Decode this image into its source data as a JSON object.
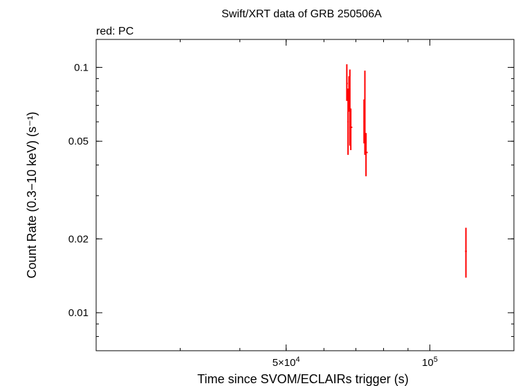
{
  "chart_data": {
    "type": "scatter",
    "title": "Swift/XRT data of GRB 250506A",
    "subtitle": "red: PC",
    "xlabel": "Time since SVOM/ECLAIRs trigger (s)",
    "ylabel": "Count Rate (0.3−10 keV) (s⁻¹)",
    "x_scale": "log",
    "y_scale": "log",
    "xlim": [
      20000,
      150000
    ],
    "ylim": [
      0.007,
      0.13
    ],
    "x_tick_labels": [
      {
        "value": 50000,
        "mantissa": "5×10",
        "exponent": "4"
      },
      {
        "value": 100000,
        "mantissa": "10",
        "exponent": "5"
      }
    ],
    "y_tick_labels": [
      {
        "value": 0.1,
        "label": "0.1"
      },
      {
        "value": 0.05,
        "label": "0.05"
      },
      {
        "value": 0.02,
        "label": "0.02"
      },
      {
        "value": 0.01,
        "label": "0.01"
      }
    ],
    "series": [
      {
        "color": "#ff0000",
        "points": [
          {
            "x": 67000,
            "y": 0.086,
            "ylo": 0.073,
            "yhi": 0.103,
            "xlo": 66800,
            "xhi": 67300
          },
          {
            "x": 67400,
            "y": 0.06,
            "ylo": 0.044,
            "yhi": 0.082,
            "xlo": 67200,
            "xhi": 67600
          },
          {
            "x": 67700,
            "y": 0.078,
            "ylo": 0.066,
            "yhi": 0.092,
            "xlo": 67500,
            "xhi": 67900
          },
          {
            "x": 68000,
            "y": 0.054,
            "ylo": 0.048,
            "yhi": 0.098,
            "xlo": 67800,
            "xhi": 68300
          },
          {
            "x": 68300,
            "y": 0.057,
            "ylo": 0.046,
            "yhi": 0.068,
            "xlo": 68000,
            "xhi": 68800
          },
          {
            "x": 72800,
            "y": 0.06,
            "ylo": 0.049,
            "yhi": 0.074,
            "xlo": 72600,
            "xhi": 73000
          },
          {
            "x": 73100,
            "y": 0.085,
            "ylo": 0.044,
            "yhi": 0.097,
            "xlo": 72900,
            "xhi": 73300
          },
          {
            "x": 73500,
            "y": 0.045,
            "ylo": 0.036,
            "yhi": 0.054,
            "xlo": 73200,
            "xhi": 74100
          },
          {
            "x": 119000,
            "y": 0.0178,
            "ylo": 0.0139,
            "yhi": 0.0222,
            "xlo": 118500,
            "xhi": 119500
          }
        ]
      }
    ],
    "grid": false,
    "legend": "none"
  }
}
